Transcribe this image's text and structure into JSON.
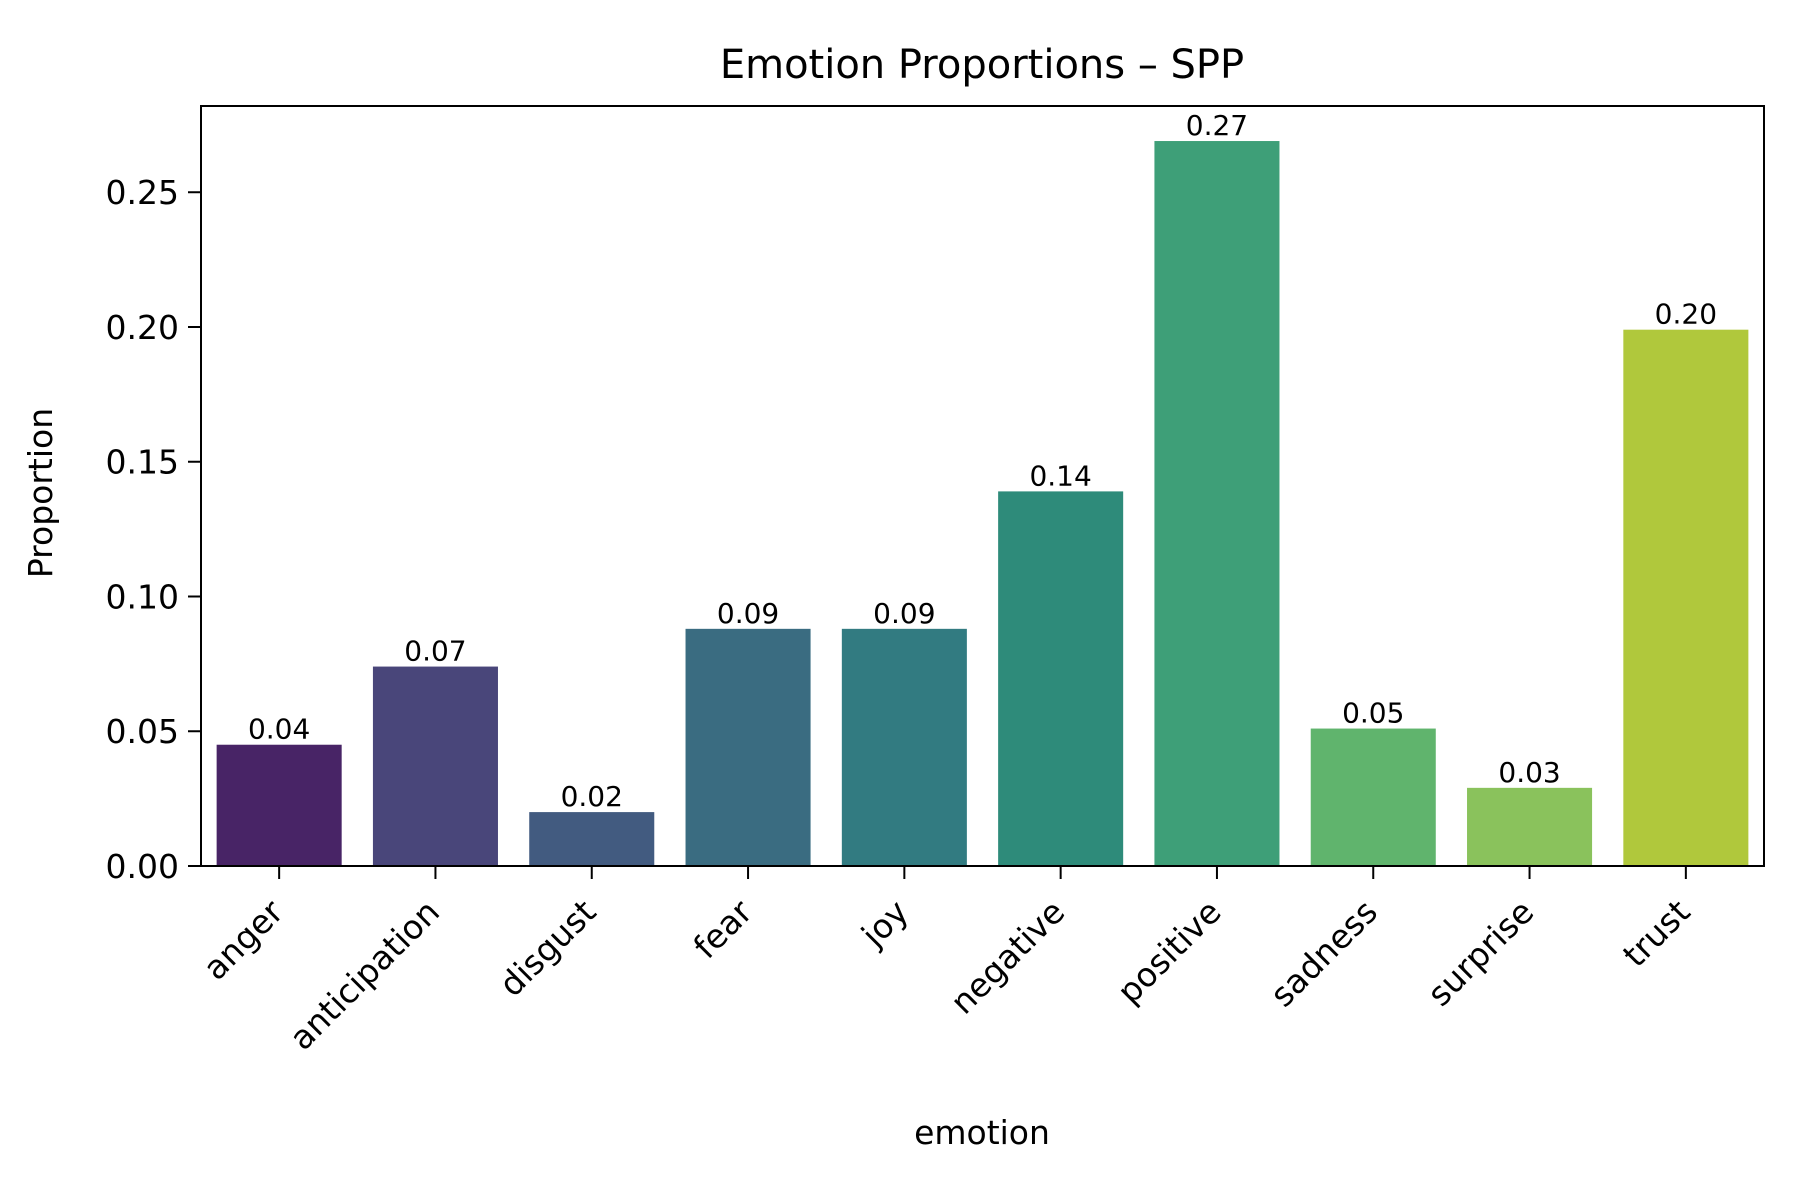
{
  "chart_data": {
    "type": "bar",
    "title": "Emotion Proportions – SPP",
    "xlabel": "emotion",
    "ylabel": "Proportion",
    "categories": [
      "anger",
      "anticipation",
      "disgust",
      "fear",
      "joy",
      "negative",
      "positive",
      "sadness",
      "surprise",
      "trust"
    ],
    "values": [
      0.045,
      0.074,
      0.02,
      0.088,
      0.088,
      0.139,
      0.269,
      0.051,
      0.029,
      0.199
    ],
    "value_labels": [
      "0.04",
      "0.07",
      "0.02",
      "0.09",
      "0.09",
      "0.14",
      "0.27",
      "0.05",
      "0.03",
      "0.20"
    ],
    "colors": [
      "#482466",
      "#49467a",
      "#425b80",
      "#3a6c81",
      "#327b81",
      "#2e8b7a",
      "#3e9f78",
      "#60b46d",
      "#8ac25c",
      "#b0c83c"
    ],
    "ylim": [
      0,
      0.282
    ],
    "yticks": [
      0.0,
      0.05,
      0.1,
      0.15,
      0.2,
      0.25
    ],
    "ytick_labels": [
      "0.00",
      "0.05",
      "0.10",
      "0.15",
      "0.20",
      "0.25"
    ],
    "grid": false,
    "legend": "none"
  }
}
